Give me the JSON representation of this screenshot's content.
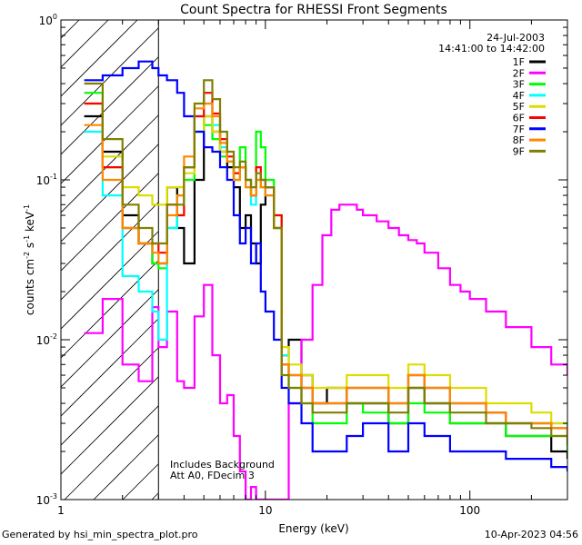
{
  "chart_data": {
    "type": "line",
    "title": "Count Spectra for RHESSI Front Segments",
    "xlabel": "Energy (keV)",
    "ylabel_parts": [
      "counts cm",
      "-2",
      " s",
      "-1",
      " keV",
      "-1"
    ],
    "xscale": "log",
    "yscale": "log",
    "xlim": [
      1,
      300
    ],
    "ylim": [
      0.001,
      1
    ],
    "x_ticks": [
      {
        "v": 1,
        "label": "1"
      },
      {
        "v": 10,
        "label": "10"
      },
      {
        "v": 100,
        "label": "100"
      }
    ],
    "y_ticks": [
      {
        "v": 0.001,
        "base": "10",
        "exp": "-3"
      },
      {
        "v": 0.01,
        "base": "10",
        "exp": "-2"
      },
      {
        "v": 0.1,
        "base": "10",
        "exp": "-1"
      },
      {
        "v": 1,
        "base": "10",
        "exp": "0"
      }
    ],
    "date": "24-Jul-2003",
    "time_range": "14:41:00 to 14:42:00",
    "annotations": [
      "Includes Background",
      "Att A0, FDecim 3"
    ],
    "attenuator_cutoff_keV": 3,
    "legend_position": "top-right",
    "series": [
      {
        "name": "1F",
        "color": "#000000",
        "x": [
          1.3,
          1.6,
          2.0,
          2.4,
          2.8,
          3.0,
          3.3,
          3.7,
          4.0,
          4.5,
          5.0,
          5.5,
          6.0,
          6.5,
          7.0,
          7.5,
          8.0,
          8.5,
          9.0,
          9.5,
          10.0,
          11,
          12,
          13,
          15,
          17,
          20,
          25,
          30,
          40,
          50,
          60,
          70,
          80,
          100,
          120,
          150,
          200,
          250,
          300
        ],
        "y": [
          0.25,
          0.15,
          0.06,
          0.04,
          0.03,
          0.03,
          0.09,
          0.05,
          0.03,
          0.1,
          0.25,
          0.2,
          0.15,
          0.12,
          0.09,
          0.05,
          0.06,
          0.04,
          0.03,
          0.07,
          0.09,
          0.05,
          0.008,
          0.01,
          0.006,
          0.004,
          0.005,
          0.004,
          0.004,
          0.003,
          0.005,
          0.004,
          0.004,
          0.003,
          0.003,
          0.003,
          0.0025,
          0.0025,
          0.002,
          0.0018
        ]
      },
      {
        "name": "2F",
        "color": "#ff00ff",
        "x": [
          1.3,
          1.6,
          2.0,
          2.4,
          2.8,
          3.0,
          3.3,
          3.7,
          4.0,
          4.5,
          5.0,
          5.5,
          6.0,
          6.5,
          7.0,
          7.5,
          8.0,
          8.5,
          9.0,
          9.5,
          10.0,
          11,
          12,
          13,
          15,
          17,
          19,
          21,
          23,
          25,
          28,
          30,
          35,
          40,
          45,
          50,
          55,
          60,
          70,
          80,
          90,
          100,
          120,
          150,
          200,
          250,
          300
        ],
        "y": [
          0.011,
          0.018,
          0.007,
          0.0055,
          0.016,
          0.009,
          0.015,
          0.0055,
          0.005,
          0.014,
          0.022,
          0.008,
          0.004,
          0.0045,
          0.0025,
          0.0015,
          0.001,
          0.0012,
          0.001,
          0.001,
          0.001,
          0.001,
          0.001,
          0.004,
          0.01,
          0.022,
          0.045,
          0.065,
          0.07,
          0.07,
          0.065,
          0.06,
          0.055,
          0.05,
          0.045,
          0.042,
          0.04,
          0.035,
          0.028,
          0.022,
          0.02,
          0.018,
          0.015,
          0.012,
          0.009,
          0.007,
          0.006
        ]
      },
      {
        "name": "3F",
        "color": "#00ff00",
        "x": [
          1.3,
          1.6,
          2.0,
          2.4,
          2.8,
          3.0,
          3.3,
          3.7,
          4.0,
          4.5,
          5.0,
          5.5,
          6.0,
          6.5,
          7.0,
          7.5,
          8.0,
          8.5,
          9.0,
          9.5,
          10.0,
          11,
          12,
          13,
          15,
          17,
          20,
          25,
          30,
          40,
          50,
          60,
          70,
          80,
          100,
          120,
          150,
          200,
          250,
          300
        ],
        "y": [
          0.35,
          0.12,
          0.05,
          0.04,
          0.03,
          0.028,
          0.05,
          0.06,
          0.1,
          0.2,
          0.22,
          0.18,
          0.14,
          0.13,
          0.11,
          0.16,
          0.1,
          0.08,
          0.2,
          0.16,
          0.1,
          0.06,
          0.007,
          0.005,
          0.004,
          0.003,
          0.003,
          0.004,
          0.0035,
          0.003,
          0.004,
          0.0035,
          0.0035,
          0.003,
          0.003,
          0.003,
          0.0025,
          0.0025,
          0.0025,
          0.002
        ]
      },
      {
        "name": "4F",
        "color": "#00ffff",
        "x": [
          1.3,
          1.6,
          2.0,
          2.4,
          2.8,
          3.0,
          3.3,
          3.7,
          4.0,
          4.5,
          5.0,
          5.5,
          6.0,
          6.5,
          7.0,
          7.5,
          8.0,
          8.5,
          9.0,
          9.5,
          10.0,
          11,
          12,
          13,
          15,
          17,
          20,
          25,
          30,
          40,
          50,
          60,
          70,
          80,
          100,
          120,
          150,
          200,
          250,
          300
        ],
        "y": [
          0.2,
          0.08,
          0.025,
          0.02,
          0.015,
          0.01,
          0.05,
          0.08,
          0.12,
          0.25,
          0.3,
          0.22,
          0.16,
          0.13,
          0.1,
          0.12,
          0.09,
          0.07,
          0.1,
          0.09,
          0.08,
          0.05,
          0.008,
          0.006,
          0.005,
          0.004,
          0.004,
          0.005,
          0.005,
          0.004,
          0.006,
          0.005,
          0.005,
          0.004,
          0.004,
          0.0035,
          0.003,
          0.003,
          0.003,
          0.0025
        ]
      },
      {
        "name": "5F",
        "color": "#dddd00",
        "x": [
          1.3,
          1.6,
          2.0,
          2.4,
          2.8,
          3.0,
          3.3,
          3.7,
          4.0,
          4.5,
          5.0,
          5.5,
          6.0,
          6.5,
          7.0,
          7.5,
          8.0,
          8.5,
          9.0,
          9.5,
          10.0,
          11,
          12,
          13,
          15,
          17,
          20,
          25,
          30,
          40,
          50,
          60,
          70,
          80,
          100,
          120,
          150,
          200,
          250,
          300
        ],
        "y": [
          0.3,
          0.14,
          0.09,
          0.08,
          0.07,
          0.07,
          0.09,
          0.09,
          0.11,
          0.2,
          0.25,
          0.2,
          0.15,
          0.13,
          0.1,
          0.12,
          0.09,
          0.08,
          0.1,
          0.09,
          0.09,
          0.05,
          0.009,
          0.007,
          0.006,
          0.005,
          0.005,
          0.006,
          0.006,
          0.005,
          0.007,
          0.006,
          0.006,
          0.005,
          0.005,
          0.004,
          0.004,
          0.0035,
          0.003,
          0.003
        ]
      },
      {
        "name": "6F",
        "color": "#ff0000",
        "x": [
          1.3,
          1.6,
          2.0,
          2.4,
          2.8,
          3.0,
          3.3,
          3.7,
          4.0,
          4.5,
          5.0,
          5.5,
          6.0,
          6.5,
          7.0,
          7.5,
          8.0,
          8.5,
          9.0,
          9.5,
          10.0,
          11,
          12,
          13,
          15,
          17,
          20,
          25,
          30,
          40,
          50,
          60,
          70,
          80,
          100,
          120,
          150,
          200,
          250,
          300
        ],
        "y": [
          0.3,
          0.12,
          0.05,
          0.04,
          0.04,
          0.035,
          0.07,
          0.06,
          0.12,
          0.25,
          0.35,
          0.26,
          0.18,
          0.14,
          0.11,
          0.12,
          0.1,
          0.08,
          0.12,
          0.1,
          0.09,
          0.06,
          0.007,
          0.006,
          0.005,
          0.004,
          0.004,
          0.005,
          0.005,
          0.004,
          0.006,
          0.005,
          0.005,
          0.004,
          0.004,
          0.0035,
          0.003,
          0.003,
          0.0028,
          0.0025
        ]
      },
      {
        "name": "7F",
        "color": "#0000ff",
        "x": [
          1.3,
          1.6,
          2.0,
          2.4,
          2.8,
          3.0,
          3.3,
          3.7,
          4.0,
          4.5,
          5.0,
          5.5,
          6.0,
          6.5,
          7.0,
          7.5,
          8.0,
          8.5,
          9.0,
          9.5,
          10.0,
          11,
          12,
          13,
          15,
          17,
          20,
          25,
          30,
          40,
          50,
          60,
          70,
          80,
          100,
          120,
          150,
          200,
          250,
          300
        ],
        "y": [
          0.42,
          0.45,
          0.5,
          0.55,
          0.5,
          0.45,
          0.42,
          0.35,
          0.25,
          0.2,
          0.16,
          0.15,
          0.12,
          0.1,
          0.06,
          0.04,
          0.05,
          0.03,
          0.04,
          0.02,
          0.015,
          0.01,
          0.005,
          0.004,
          0.003,
          0.002,
          0.002,
          0.0025,
          0.003,
          0.002,
          0.003,
          0.0025,
          0.0025,
          0.002,
          0.002,
          0.002,
          0.0018,
          0.0018,
          0.0016,
          0.0015
        ]
      },
      {
        "name": "8F",
        "color": "#ff8800",
        "x": [
          1.3,
          1.6,
          2.0,
          2.4,
          2.8,
          3.0,
          3.3,
          3.7,
          4.0,
          4.5,
          5.0,
          5.5,
          6.0,
          6.5,
          7.0,
          7.5,
          8.0,
          8.5,
          9.0,
          9.5,
          10.0,
          11,
          12,
          13,
          15,
          17,
          20,
          25,
          30,
          40,
          50,
          60,
          70,
          80,
          100,
          120,
          150,
          200,
          250,
          300
        ],
        "y": [
          0.22,
          0.1,
          0.05,
          0.04,
          0.035,
          0.03,
          0.06,
          0.08,
          0.14,
          0.28,
          0.3,
          0.25,
          0.17,
          0.13,
          0.1,
          0.12,
          0.09,
          0.08,
          0.1,
          0.09,
          0.08,
          0.05,
          0.007,
          0.006,
          0.005,
          0.004,
          0.004,
          0.005,
          0.005,
          0.004,
          0.006,
          0.005,
          0.005,
          0.004,
          0.004,
          0.0035,
          0.003,
          0.003,
          0.0028,
          0.0025
        ]
      },
      {
        "name": "9F",
        "color": "#808000",
        "x": [
          1.3,
          1.6,
          2.0,
          2.4,
          2.8,
          3.0,
          3.3,
          3.7,
          4.0,
          4.5,
          5.0,
          5.5,
          6.0,
          6.5,
          7.0,
          7.5,
          8.0,
          8.5,
          9.0,
          9.5,
          10.0,
          11,
          12,
          13,
          15,
          17,
          20,
          25,
          30,
          40,
          50,
          60,
          70,
          80,
          100,
          120,
          150,
          200,
          250,
          300
        ],
        "y": [
          0.4,
          0.18,
          0.07,
          0.05,
          0.04,
          0.04,
          0.07,
          0.07,
          0.12,
          0.3,
          0.42,
          0.32,
          0.2,
          0.15,
          0.12,
          0.13,
          0.1,
          0.09,
          0.11,
          0.1,
          0.09,
          0.05,
          0.006,
          0.005,
          0.004,
          0.0035,
          0.0035,
          0.004,
          0.004,
          0.0035,
          0.005,
          0.004,
          0.004,
          0.0035,
          0.0035,
          0.003,
          0.003,
          0.0028,
          0.0025,
          0.0022
        ]
      }
    ]
  },
  "footer": {
    "generated_by": "Generated by hsi_min_spectra_plot.pro",
    "timestamp": "10-Apr-2023 04:56"
  }
}
